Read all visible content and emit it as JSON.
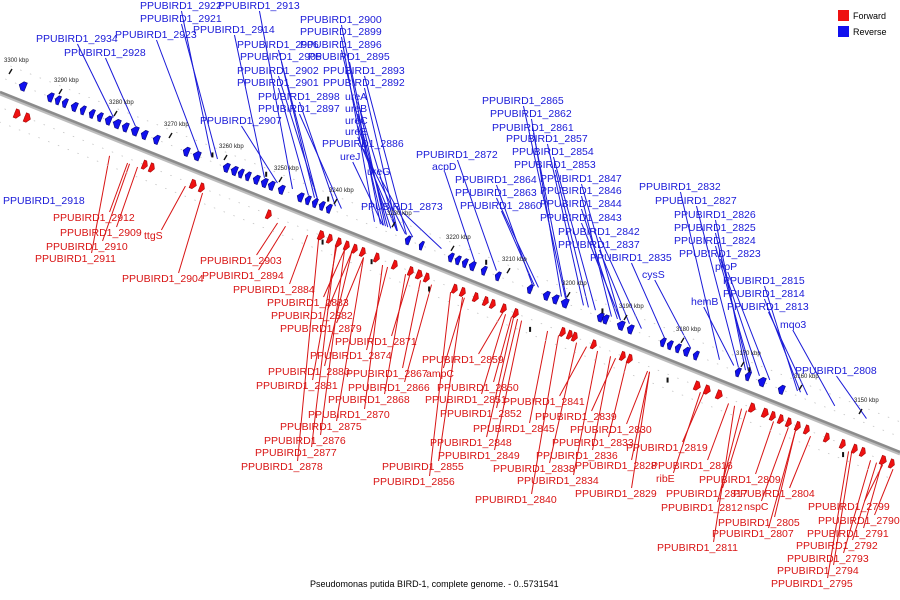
{
  "colors": {
    "forward": "#ee1111",
    "forward_dark": "#a80808",
    "reverse": "#1111ee",
    "reverse_dark": "#08087a",
    "backbone": "#8c8c8c",
    "tick": "#111111"
  },
  "legend": {
    "forward": "Forward",
    "reverse": "Reverse"
  },
  "caption": "Pseudomonas putida BIRD-1, complete genome. - 0..5731541",
  "ticks": [
    "3300 kbp",
    "3290 kbp",
    "3280 kbp",
    "3270 kbp",
    "3260 kbp",
    "3250 kbp",
    "3240 kbp",
    "3230 kbp",
    "3220 kbp",
    "3210 kbp",
    "3200 kbp",
    "3190 kbp",
    "3180 kbp",
    "3170 kbp",
    "3160 kbp",
    "3150 kbp"
  ],
  "reverse_labels": [
    "PPUBIRD1_2922",
    "PPUBIRD1_2913",
    "PPUBIRD1_2921",
    "PPUBIRD1_2900",
    "PPUBIRD1_2923",
    "PPUBIRD1_2914",
    "PPUBIRD1_2899",
    "PPUBIRD1_2934",
    "PPUBIRD1_2906",
    "PPUBIRD1_2896",
    "PPUBIRD1_2928",
    "PPUBIRD1_2905",
    "PPUBIRD1_2895",
    "PPUBIRD1_2902",
    "PPUBIRD1_2893",
    "PPUBIRD1_2901",
    "PPUBIRD1_2892",
    "PPUBIRD1_2898",
    "ureA",
    "PPUBIRD1_2897",
    "ureB",
    "ureC",
    "PPUBIRD1_2907",
    "ureE",
    "PPUBIRD1_2886",
    "ureJ",
    "ureG",
    "PPUBIRD1_2918",
    "PPUBIRD1_2873",
    "PPUBIRD1_2865",
    "PPUBIRD1_2862",
    "PPUBIRD1_2861",
    "PPUBIRD1_2857",
    "PPUBIRD1_2872",
    "PPUBIRD1_2854",
    "acpD",
    "PPUBIRD1_2853",
    "PPUBIRD1_2864",
    "PPUBIRD1_2847",
    "PPUBIRD1_2863",
    "PPUBIRD1_2846",
    "PPUBIRD1_2860",
    "PPUBIRD1_2844",
    "PPUBIRD1_2843",
    "PPUBIRD1_2842",
    "PPUBIRD1_2837",
    "PPUBIRD1_2835",
    "cysS",
    "PPUBIRD1_2832",
    "PPUBIRD1_2827",
    "PPUBIRD1_2826",
    "PPUBIRD1_2825",
    "PPUBIRD1_2824",
    "PPUBIRD1_2823",
    "proP",
    "hemB",
    "PPUBIRD1_2815",
    "PPUBIRD1_2814",
    "PPUBIRD1_2813",
    "mqo3",
    "PPUBIRD1_2808"
  ],
  "forward_labels": [
    "PPUBIRD1_2912",
    "PPUBIRD1_2909",
    "ttgS",
    "PPUBIRD1_2910",
    "PPUBIRD1_2911",
    "PPUBIRD1_2903",
    "PPUBIRD1_2904",
    "PPUBIRD1_2894",
    "PPUBIRD1_2884",
    "PPUBIRD1_2883",
    "PPUBIRD1_2882",
    "PPUBIRD1_2879",
    "PPUBIRD1_2871",
    "PPUBIRD1_2874",
    "PPUBIRD1_2859",
    "PPUBIRD1_2880",
    "PPUBIRD1_2867",
    "ampC",
    "PPUBIRD1_2881",
    "PPUBIRD1_2866",
    "PPUBIRD1_2850",
    "PPUBIRD1_2868",
    "PPUBIRD1_2851",
    "PPUBIRD1_2841",
    "PPUBIRD1_2870",
    "PPUBIRD1_2852",
    "PPUBIRD1_2839",
    "PPUBIRD1_2875",
    "PPUBIRD1_2845",
    "PPUBIRD1_2830",
    "PPUBIRD1_2876",
    "PPUBIRD1_2848",
    "PPUBIRD1_2833",
    "PPUBIRD1_2819",
    "PPUBIRD1_2877",
    "PPUBIRD1_2849",
    "PPUBIRD1_2836",
    "PPUBIRD1_2878",
    "PPUBIRD1_2855",
    "PPUBIRD1_2838",
    "PPUBIRD1_2828",
    "PPUBIRD1_2816",
    "PPUBIRD1_2834",
    "ribE",
    "PPUBIRD1_2809",
    "PPUBIRD1_2856",
    "PPUBIRD1_2817",
    "PPUBIRD1_2840",
    "PPUBIRD1_2829",
    "PPUBIRD1_2804",
    "PPUBIRD1_2812",
    "nspC",
    "PPUBIRD1_2799",
    "PPUBIRD1_2805",
    "PPUBIRD1_2790",
    "PPUBIRD1_2807",
    "PPUBIRD1_2791",
    "PPUBIRD1_2811",
    "PPUBIRD1_2792",
    "PPUBIRD1_2793",
    "PPUBIRD1_2794",
    "PPUBIRD1_2795"
  ]
}
